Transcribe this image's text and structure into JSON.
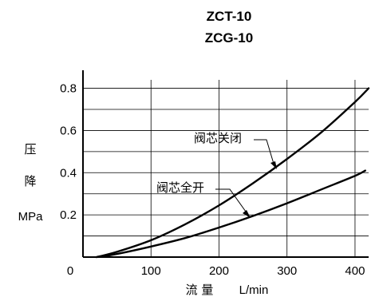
{
  "chart_data": {
    "type": "line",
    "title_lines": [
      "ZCT-10",
      "ZCG-10"
    ],
    "ylabel_chars": [
      "压",
      "降",
      "MPa"
    ],
    "xlabel_text": "流 量",
    "xlabel_unit": "L/min",
    "xlim": [
      0,
      420
    ],
    "ylim": [
      0,
      0.84
    ],
    "x_ticks": [
      0,
      100,
      200,
      300,
      400
    ],
    "x_tick_labels": [
      "0",
      "100",
      "200",
      "300",
      "400"
    ],
    "y_ticks": [
      0.2,
      0.4,
      0.6,
      0.8
    ],
    "y_tick_labels": [
      "0.2",
      "0.4",
      "0.6",
      "0.8"
    ],
    "grid": true,
    "minor_y_step": 0.1,
    "series": [
      {
        "name": "阀芯关闭",
        "x": [
          20,
          50,
          100,
          150,
          200,
          250,
          300,
          350,
          400,
          420
        ],
        "y": [
          0,
          0.025,
          0.08,
          0.155,
          0.245,
          0.35,
          0.465,
          0.59,
          0.735,
          0.8
        ],
        "color": "#000000"
      },
      {
        "name": "阀芯全开",
        "x": [
          20,
          50,
          100,
          150,
          200,
          250,
          300,
          350,
          400,
          415
        ],
        "y": [
          0,
          0.015,
          0.05,
          0.09,
          0.14,
          0.195,
          0.255,
          0.32,
          0.385,
          0.41
        ],
        "color": "#000000"
      }
    ],
    "annotations": [
      "阀芯关闭",
      "阀芯全开"
    ]
  }
}
